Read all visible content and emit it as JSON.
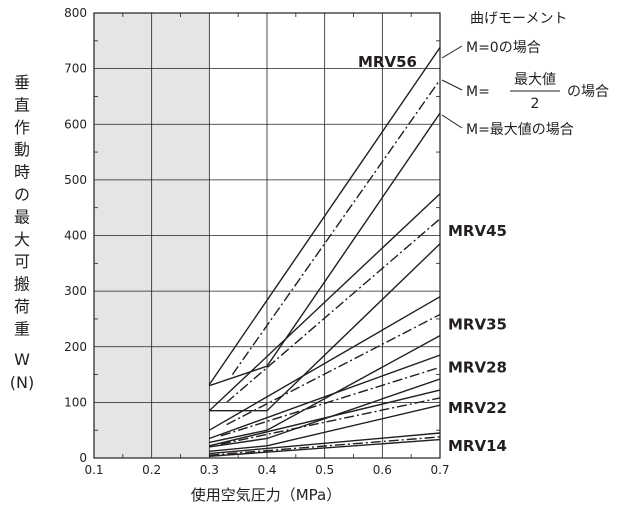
{
  "chart_data": {
    "type": "line",
    "xlabel": "使用空気圧力（MPa）",
    "ylabel_chars": [
      "垂",
      "直",
      "作",
      "動",
      "時",
      "の",
      "最",
      "大",
      "可",
      "搬",
      "荷",
      "重"
    ],
    "ylabel_symbol": "W",
    "ylabel_unit": "(N)",
    "xlim": [
      0.1,
      0.7
    ],
    "ylim": [
      0,
      800
    ],
    "x_ticks": [
      "0.1",
      "0.2",
      "0.3",
      "0.4",
      "0.5",
      "0.6",
      "0.7"
    ],
    "y_ticks": [
      "0",
      "100",
      "200",
      "300",
      "400",
      "500",
      "600",
      "700",
      "800"
    ],
    "grid": true,
    "shaded_region": [
      0.1,
      0.3
    ],
    "plot_background": "#e5e5e5",
    "legend": {
      "title": "曲げモーメント",
      "entries": [
        {
          "style": "solid",
          "label": "M=0の場合"
        },
        {
          "style": "dashdot",
          "m_prefix": "M=",
          "numerator": "最大値",
          "denominator": "2",
          "suffix": "の場合"
        },
        {
          "style": "solid",
          "label": "M=最大値の場合"
        }
      ]
    },
    "model_labels": [
      {
        "name": "MRV56",
        "y": 712
      },
      {
        "name": "MRV45",
        "y": 408
      },
      {
        "name": "MRV35",
        "y": 240
      },
      {
        "name": "MRV28",
        "y": 163
      },
      {
        "name": "MRV22",
        "y": 90
      },
      {
        "name": "MRV14",
        "y": 22
      }
    ],
    "series": [
      {
        "group": "MRV56",
        "moment": "M=0",
        "style": "solid",
        "points": [
          [
            0.3,
            132
          ],
          [
            0.7,
            738
          ]
        ]
      },
      {
        "group": "MRV56",
        "moment": "M=max/2",
        "style": "dashdot",
        "points": [
          [
            0.34,
            150
          ],
          [
            0.7,
            680
          ]
        ]
      },
      {
        "group": "MRV56",
        "moment": "M=max",
        "style": "solid",
        "points": [
          [
            0.3,
            130
          ],
          [
            0.4,
            165
          ],
          [
            0.7,
            620
          ]
        ]
      },
      {
        "group": "MRV45",
        "moment": "M=0",
        "style": "solid",
        "points": [
          [
            0.3,
            85
          ],
          [
            0.7,
            475
          ]
        ]
      },
      {
        "group": "MRV45",
        "moment": "M=max/2",
        "style": "dashdot",
        "points": [
          [
            0.33,
            100
          ],
          [
            0.7,
            430
          ]
        ]
      },
      {
        "group": "MRV45",
        "moment": "M=max",
        "style": "solid",
        "points": [
          [
            0.3,
            85
          ],
          [
            0.4,
            85
          ],
          [
            0.7,
            385
          ]
        ]
      },
      {
        "group": "MRV35",
        "moment": "M=0",
        "style": "solid",
        "points": [
          [
            0.3,
            50
          ],
          [
            0.7,
            290
          ]
        ]
      },
      {
        "group": "MRV35",
        "moment": "M=max/2",
        "style": "dashdot",
        "points": [
          [
            0.33,
            60
          ],
          [
            0.7,
            258
          ]
        ]
      },
      {
        "group": "MRV35",
        "moment": "M=max",
        "style": "solid",
        "points": [
          [
            0.3,
            28
          ],
          [
            0.4,
            50
          ],
          [
            0.7,
            220
          ]
        ]
      },
      {
        "group": "MRV28",
        "moment": "M=0",
        "style": "solid",
        "points": [
          [
            0.3,
            35
          ],
          [
            0.7,
            185
          ]
        ]
      },
      {
        "group": "MRV28",
        "moment": "M=max/2",
        "style": "dashdot",
        "points": [
          [
            0.32,
            40
          ],
          [
            0.7,
            163
          ]
        ]
      },
      {
        "group": "MRV28",
        "moment": "M=max",
        "style": "solid",
        "points": [
          [
            0.3,
            20
          ],
          [
            0.4,
            35
          ],
          [
            0.7,
            142
          ]
        ]
      },
      {
        "group": "MRV22",
        "moment": "M=0",
        "style": "solid",
        "points": [
          [
            0.3,
            22
          ],
          [
            0.7,
            122
          ]
        ]
      },
      {
        "group": "MRV22",
        "moment": "M=max/2",
        "style": "dashdot",
        "points": [
          [
            0.32,
            25
          ],
          [
            0.7,
            108
          ]
        ]
      },
      {
        "group": "MRV22",
        "moment": "M=max",
        "style": "solid",
        "points": [
          [
            0.3,
            12
          ],
          [
            0.4,
            22
          ],
          [
            0.7,
            95
          ]
        ]
      },
      {
        "group": "MRV14",
        "moment": "M=0",
        "style": "solid",
        "points": [
          [
            0.3,
            8
          ],
          [
            0.7,
            45
          ]
        ]
      },
      {
        "group": "MRV14",
        "moment": "M=max/2",
        "style": "dashdot",
        "points": [
          [
            0.3,
            5
          ],
          [
            0.7,
            38
          ]
        ]
      },
      {
        "group": "MRV14",
        "moment": "M=max",
        "style": "solid",
        "points": [
          [
            0.3,
            3
          ],
          [
            0.7,
            33
          ]
        ]
      }
    ]
  }
}
